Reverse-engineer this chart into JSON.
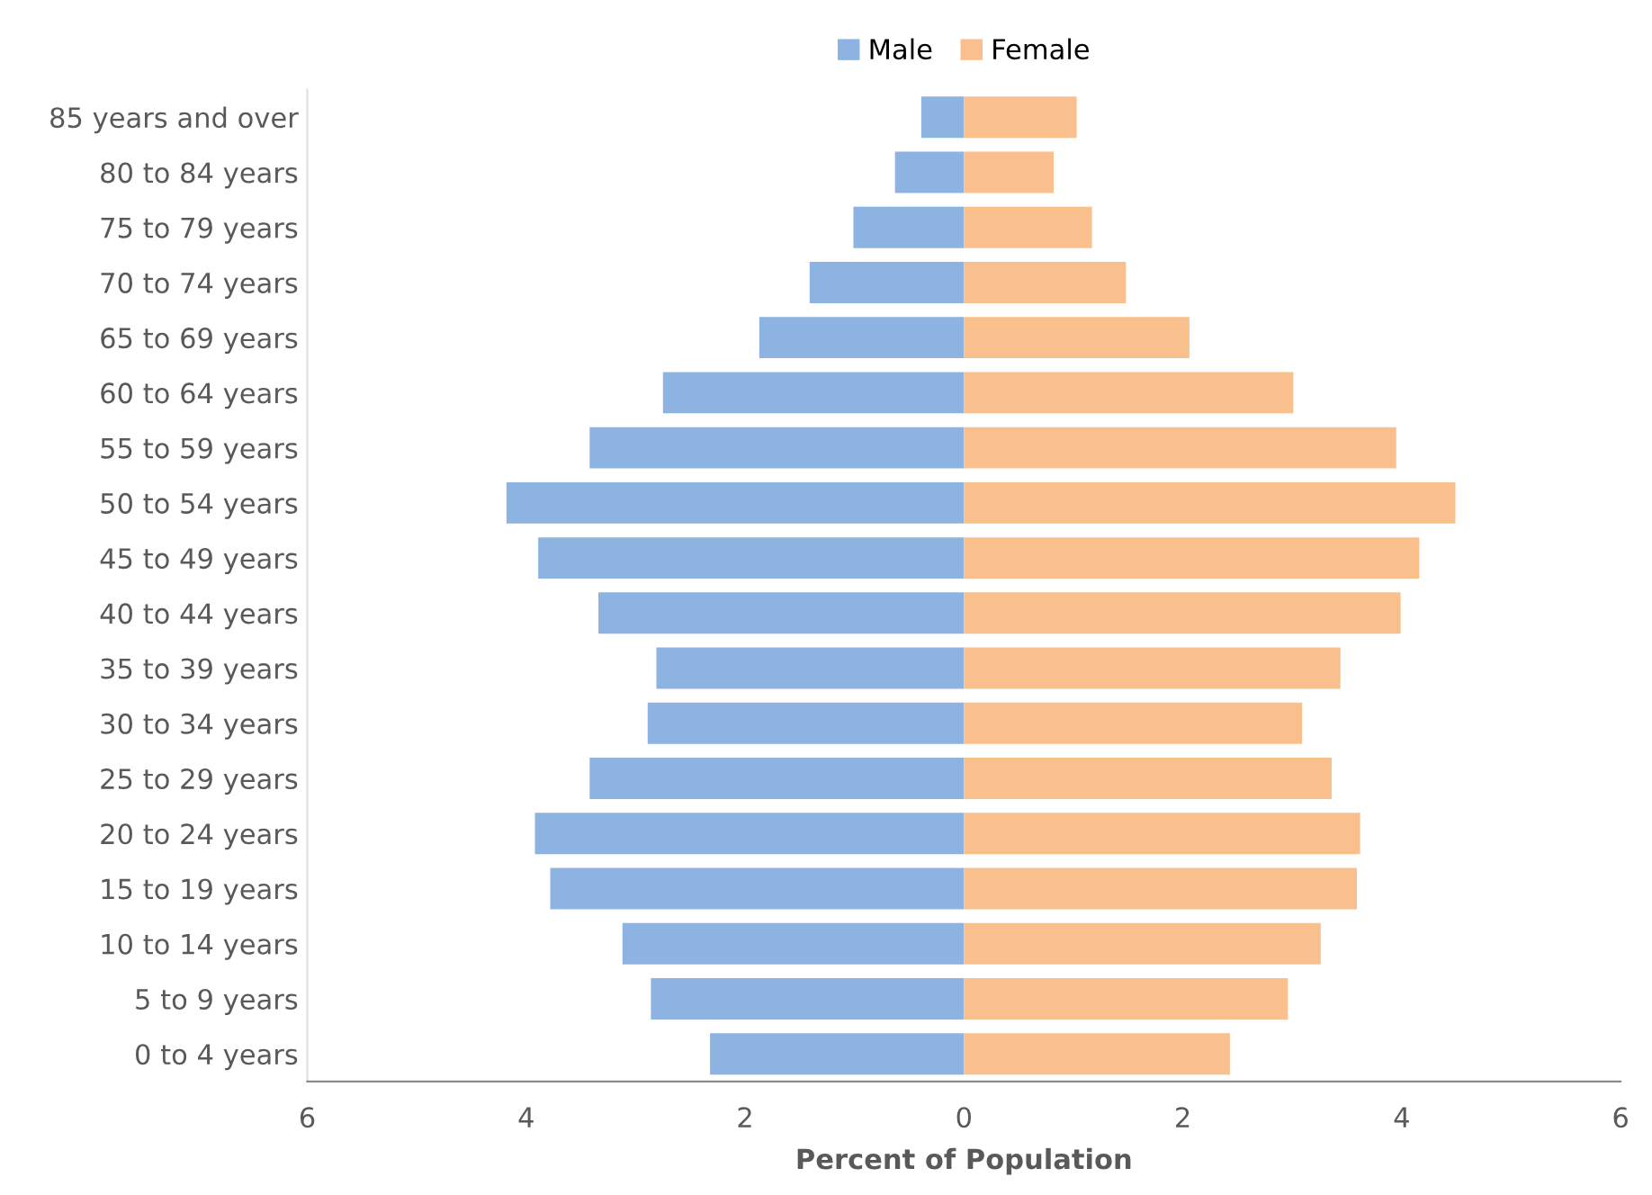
{
  "chart_data": {
    "type": "bar",
    "orientation": "horizontal",
    "stacked": true,
    "xlabel": "Percent of Population",
    "legend": "top",
    "grid": false,
    "categories": [
      "85 years and over",
      "80 to 84 years",
      "75 to 79 years",
      "70 to 74 years",
      "65 to 69 years",
      "60 to 64 years",
      "55 to 59 years",
      "50 to 54 years",
      "45 to 49 years",
      "40 to 44 years",
      "35 to 39 years",
      "30 to 34 years",
      "25 to 29 years",
      "20 to 24 years",
      "15 to 19 years",
      "10 to 14 years",
      "5 to 9 years",
      "0 to 4 years"
    ],
    "series": [
      {
        "name": "Male",
        "color": "#8db3e2",
        "values": [
          -0.39,
          -0.63,
          -1.01,
          -1.41,
          -1.87,
          -2.75,
          -3.42,
          -4.18,
          -3.89,
          -3.34,
          -2.81,
          -2.89,
          -3.42,
          -3.92,
          -3.78,
          -3.12,
          -2.86,
          -2.32
        ]
      },
      {
        "name": "Female",
        "color": "#f9c08e",
        "values": [
          1.03,
          0.82,
          1.17,
          1.48,
          2.06,
          3.01,
          3.95,
          4.49,
          4.16,
          3.99,
          3.44,
          3.09,
          3.36,
          3.62,
          3.59,
          3.26,
          2.96,
          2.43
        ]
      }
    ],
    "xlim": [
      -6,
      6
    ],
    "xticks": [
      {
        "value": -6,
        "label": "6"
      },
      {
        "value": -4,
        "label": "4"
      },
      {
        "value": -2,
        "label": "2"
      },
      0,
      2,
      4,
      6
    ]
  }
}
